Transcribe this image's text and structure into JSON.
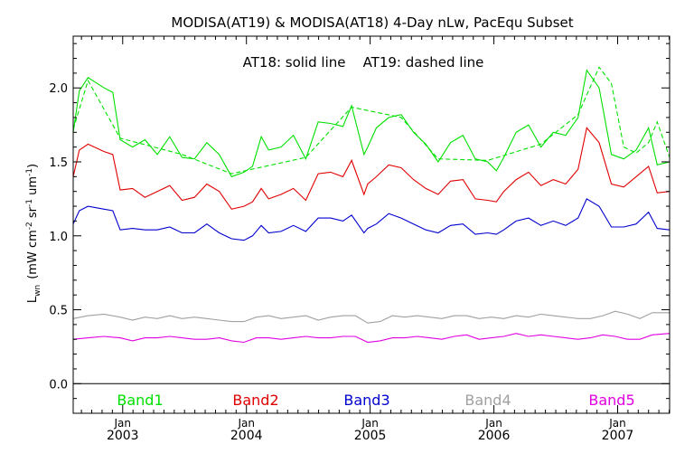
{
  "chart_data": {
    "type": "line",
    "title": "MODISA(AT19) & MODISA(AT18) 4-Day nLw, PacEqu Subset",
    "annotation": "AT18: solid line    AT19: dashed line",
    "ylabel": "L_wn (mW cm^-2 sr^-1 um^-1)",
    "ylabel_parts": {
      "main": "L",
      "sub": "wn",
      "units": "(mW cm",
      "e1": "-2",
      "sr": " sr",
      "e2": "-1",
      "um": " um",
      "e3": "-1",
      "close": ")"
    },
    "xlim": [
      2002.6,
      2007.42
    ],
    "ylim": [
      -0.2,
      2.35
    ],
    "y_ticks": [
      {
        "value": 0.0,
        "label": "0.0"
      },
      {
        "value": 0.5,
        "label": "0.5"
      },
      {
        "value": 1.0,
        "label": "1.0"
      },
      {
        "value": 1.5,
        "label": "1.5"
      },
      {
        "value": 2.0,
        "label": "2.0"
      }
    ],
    "x_ticks": [
      {
        "value": 2003.0,
        "month": "Jan",
        "year": "2003"
      },
      {
        "value": 2004.0,
        "month": "Jan",
        "year": "2004"
      },
      {
        "value": 2005.0,
        "month": "Jan",
        "year": "2005"
      },
      {
        "value": 2006.0,
        "month": "Jan",
        "year": "2006"
      },
      {
        "value": 2007.0,
        "month": "Jan",
        "year": "2007"
      }
    ],
    "legend": [
      {
        "name": "Band1",
        "color": "#00e000"
      },
      {
        "name": "Band2",
        "color": "#e00000"
      },
      {
        "name": "Band3",
        "color": "#0000d0"
      },
      {
        "name": "Band4",
        "color": "#a0a0a0"
      },
      {
        "name": "Band5",
        "color": "#e000e0"
      }
    ],
    "series": [
      {
        "name": "Band1",
        "style": "solid",
        "color": "#00e000",
        "x": [
          2002.6,
          2002.65,
          2002.72,
          2002.85,
          2002.92,
          2002.98,
          2003.08,
          2003.18,
          2003.28,
          2003.38,
          2003.48,
          2003.58,
          2003.68,
          2003.78,
          2003.88,
          2003.98,
          2004.05,
          2004.12,
          2004.18,
          2004.28,
          2004.38,
          2004.48,
          2004.58,
          2004.68,
          2004.78,
          2004.85,
          2004.95,
          2004.98,
          2005.05,
          2005.15,
          2005.25,
          2005.35,
          2005.45,
          2005.55,
          2005.65,
          2005.75,
          2005.85,
          2005.95,
          2006.02,
          2006.08,
          2006.18,
          2006.28,
          2006.38,
          2006.48,
          2006.58,
          2006.68,
          2006.75,
          2006.85,
          2006.95,
          2007.05,
          2007.15,
          2007.25,
          2007.32,
          2007.42
        ],
        "y": [
          1.7,
          1.98,
          2.07,
          2.0,
          1.97,
          1.65,
          1.6,
          1.65,
          1.55,
          1.67,
          1.53,
          1.52,
          1.63,
          1.55,
          1.4,
          1.43,
          1.47,
          1.67,
          1.58,
          1.6,
          1.68,
          1.52,
          1.77,
          1.76,
          1.74,
          1.88,
          1.55,
          1.6,
          1.73,
          1.8,
          1.82,
          1.7,
          1.62,
          1.5,
          1.63,
          1.68,
          1.52,
          1.5,
          1.44,
          1.53,
          1.7,
          1.75,
          1.6,
          1.7,
          1.68,
          1.8,
          2.12,
          2.0,
          1.55,
          1.52,
          1.58,
          1.73,
          1.48,
          1.5
        ]
      },
      {
        "name": "Band1 AT19",
        "style": "dashed",
        "color": "#00e000",
        "x": [
          2002.6,
          2002.72,
          2002.98,
          2003.48,
          2003.88,
          2004.48,
          2004.85,
          2005.25,
          2005.55,
          2005.95,
          2006.38,
          2006.68,
          2006.85,
          2006.95,
          2007.05,
          2007.15,
          2007.25,
          2007.32,
          2007.42
        ],
        "y": [
          1.72,
          2.05,
          1.66,
          1.55,
          1.42,
          1.53,
          1.87,
          1.8,
          1.52,
          1.51,
          1.62,
          1.82,
          2.14,
          2.03,
          1.6,
          1.56,
          1.63,
          1.77,
          1.53
        ]
      },
      {
        "name": "Band2",
        "style": "solid",
        "color": "#e00000",
        "x": [
          2002.6,
          2002.65,
          2002.72,
          2002.85,
          2002.92,
          2002.98,
          2003.08,
          2003.18,
          2003.28,
          2003.38,
          2003.48,
          2003.58,
          2003.68,
          2003.78,
          2003.88,
          2003.98,
          2004.05,
          2004.12,
          2004.18,
          2004.28,
          2004.38,
          2004.48,
          2004.58,
          2004.68,
          2004.78,
          2004.85,
          2004.95,
          2004.98,
          2005.05,
          2005.15,
          2005.25,
          2005.35,
          2005.45,
          2005.55,
          2005.65,
          2005.75,
          2005.85,
          2005.95,
          2006.02,
          2006.08,
          2006.18,
          2006.28,
          2006.38,
          2006.48,
          2006.58,
          2006.68,
          2006.75,
          2006.85,
          2006.95,
          2007.05,
          2007.15,
          2007.25,
          2007.32,
          2007.42
        ],
        "y": [
          1.4,
          1.58,
          1.62,
          1.57,
          1.55,
          1.31,
          1.32,
          1.26,
          1.3,
          1.34,
          1.24,
          1.26,
          1.35,
          1.3,
          1.18,
          1.2,
          1.23,
          1.32,
          1.25,
          1.28,
          1.32,
          1.24,
          1.42,
          1.43,
          1.4,
          1.51,
          1.28,
          1.35,
          1.4,
          1.48,
          1.46,
          1.38,
          1.32,
          1.28,
          1.37,
          1.38,
          1.25,
          1.24,
          1.23,
          1.3,
          1.38,
          1.43,
          1.34,
          1.38,
          1.35,
          1.45,
          1.73,
          1.63,
          1.35,
          1.33,
          1.4,
          1.47,
          1.29,
          1.3
        ]
      },
      {
        "name": "Band3",
        "style": "solid",
        "color": "#0000d0",
        "x": [
          2002.6,
          2002.65,
          2002.72,
          2002.85,
          2002.92,
          2002.98,
          2003.08,
          2003.18,
          2003.28,
          2003.38,
          2003.48,
          2003.58,
          2003.68,
          2003.78,
          2003.88,
          2003.98,
          2004.05,
          2004.12,
          2004.18,
          2004.28,
          2004.38,
          2004.48,
          2004.58,
          2004.68,
          2004.78,
          2004.85,
          2004.95,
          2004.98,
          2005.05,
          2005.15,
          2005.25,
          2005.35,
          2005.45,
          2005.55,
          2005.65,
          2005.75,
          2005.85,
          2005.95,
          2006.02,
          2006.08,
          2006.18,
          2006.28,
          2006.38,
          2006.48,
          2006.58,
          2006.68,
          2006.75,
          2006.85,
          2006.95,
          2007.05,
          2007.15,
          2007.25,
          2007.32,
          2007.42
        ],
        "y": [
          1.08,
          1.17,
          1.2,
          1.18,
          1.17,
          1.04,
          1.05,
          1.04,
          1.04,
          1.06,
          1.02,
          1.02,
          1.08,
          1.02,
          0.98,
          0.97,
          1.0,
          1.07,
          1.02,
          1.03,
          1.07,
          1.03,
          1.12,
          1.12,
          1.1,
          1.14,
          1.02,
          1.05,
          1.08,
          1.15,
          1.12,
          1.08,
          1.04,
          1.02,
          1.07,
          1.08,
          1.01,
          1.02,
          1.01,
          1.04,
          1.1,
          1.12,
          1.07,
          1.1,
          1.07,
          1.12,
          1.25,
          1.2,
          1.06,
          1.06,
          1.08,
          1.16,
          1.05,
          1.04
        ]
      },
      {
        "name": "Band4",
        "style": "solid",
        "color": "#a0a0a0",
        "x": [
          2002.6,
          2002.72,
          2002.85,
          2002.98,
          2003.08,
          2003.18,
          2003.28,
          2003.38,
          2003.48,
          2003.58,
          2003.68,
          2003.78,
          2003.88,
          2003.98,
          2004.08,
          2004.18,
          2004.28,
          2004.38,
          2004.48,
          2004.58,
          2004.68,
          2004.78,
          2004.88,
          2004.98,
          2005.08,
          2005.18,
          2005.28,
          2005.38,
          2005.48,
          2005.58,
          2005.68,
          2005.78,
          2005.88,
          2005.98,
          2006.08,
          2006.18,
          2006.28,
          2006.38,
          2006.48,
          2006.58,
          2006.68,
          2006.78,
          2006.88,
          2006.98,
          2007.08,
          2007.18,
          2007.28,
          2007.42
        ],
        "y": [
          0.44,
          0.46,
          0.47,
          0.45,
          0.43,
          0.45,
          0.44,
          0.46,
          0.44,
          0.45,
          0.44,
          0.43,
          0.42,
          0.42,
          0.45,
          0.46,
          0.44,
          0.45,
          0.46,
          0.43,
          0.45,
          0.46,
          0.46,
          0.41,
          0.42,
          0.46,
          0.45,
          0.46,
          0.45,
          0.44,
          0.46,
          0.46,
          0.44,
          0.45,
          0.44,
          0.46,
          0.45,
          0.47,
          0.46,
          0.45,
          0.44,
          0.44,
          0.46,
          0.49,
          0.47,
          0.44,
          0.48,
          0.48
        ]
      },
      {
        "name": "Band5",
        "style": "solid",
        "color": "#e000e0",
        "x": [
          2002.6,
          2002.72,
          2002.85,
          2002.98,
          2003.08,
          2003.18,
          2003.28,
          2003.38,
          2003.48,
          2003.58,
          2003.68,
          2003.78,
          2003.88,
          2003.98,
          2004.08,
          2004.18,
          2004.28,
          2004.38,
          2004.48,
          2004.58,
          2004.68,
          2004.78,
          2004.88,
          2004.98,
          2005.08,
          2005.18,
          2005.28,
          2005.38,
          2005.48,
          2005.58,
          2005.68,
          2005.78,
          2005.88,
          2005.98,
          2006.08,
          2006.18,
          2006.28,
          2006.38,
          2006.48,
          2006.58,
          2006.68,
          2006.78,
          2006.88,
          2006.98,
          2007.08,
          2007.18,
          2007.28,
          2007.42
        ],
        "y": [
          0.3,
          0.31,
          0.32,
          0.31,
          0.29,
          0.31,
          0.31,
          0.32,
          0.31,
          0.3,
          0.3,
          0.31,
          0.29,
          0.28,
          0.31,
          0.31,
          0.3,
          0.31,
          0.32,
          0.31,
          0.31,
          0.32,
          0.32,
          0.28,
          0.29,
          0.31,
          0.31,
          0.32,
          0.31,
          0.3,
          0.32,
          0.33,
          0.3,
          0.31,
          0.32,
          0.34,
          0.32,
          0.33,
          0.32,
          0.31,
          0.3,
          0.31,
          0.33,
          0.32,
          0.3,
          0.3,
          0.33,
          0.34
        ]
      }
    ]
  }
}
